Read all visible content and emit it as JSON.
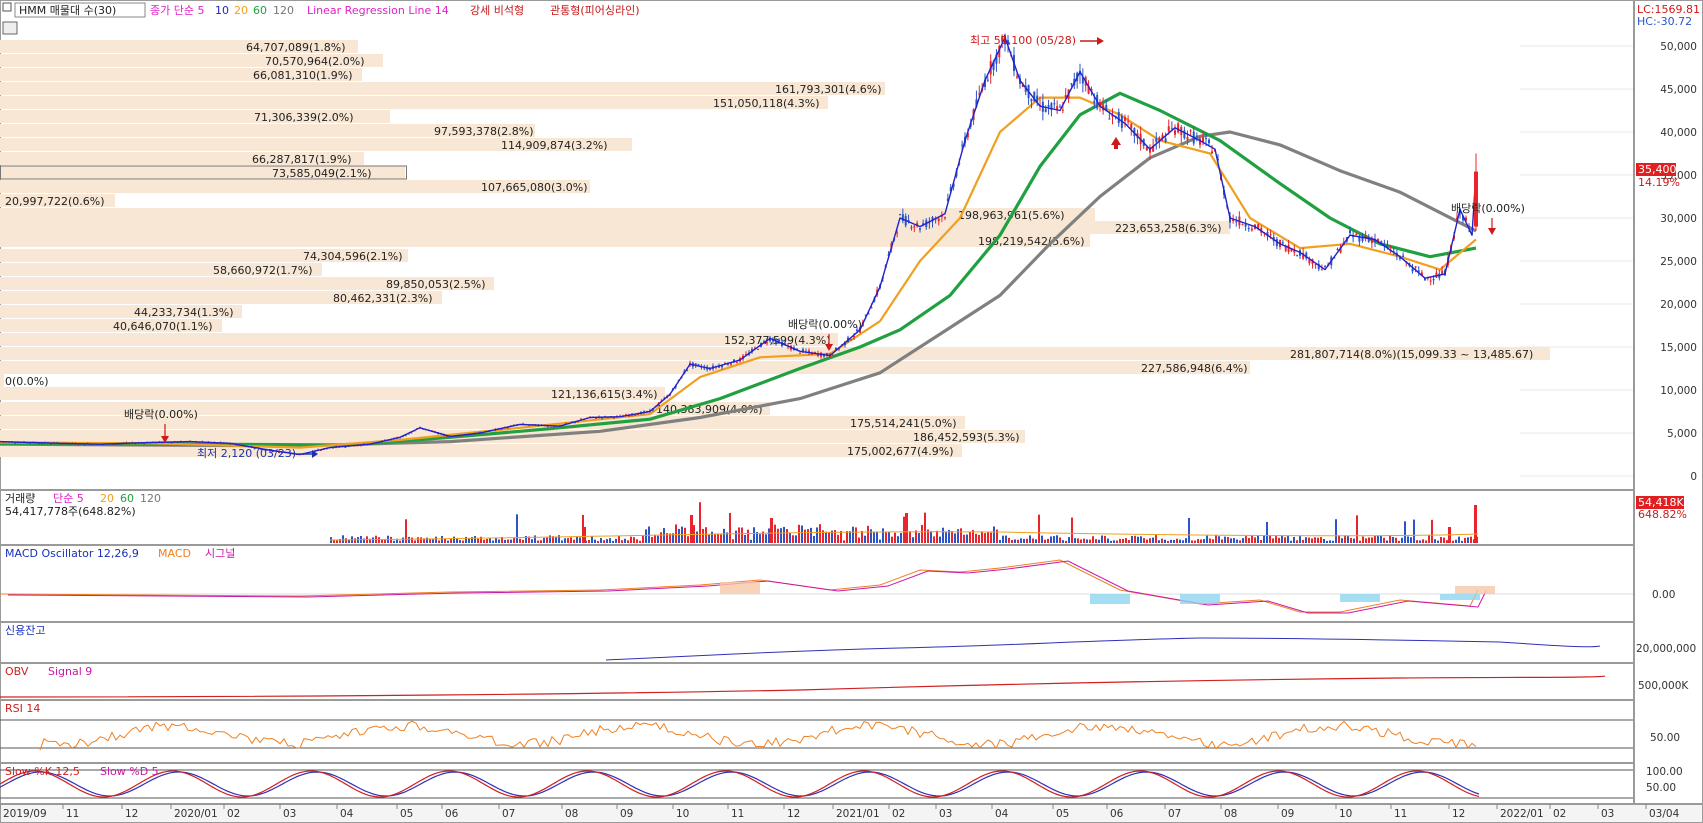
{
  "title": "HMM 매물대 수(30)",
  "legend": {
    "ma": "종가 단순 5",
    "ma_10": "10",
    "ma_20": "20",
    "ma_60": "60",
    "ma_120": "120",
    "regression": "Linear Regression Line 14",
    "pattern1": "강세 비석형",
    "pattern2": "관통형(피어싱라인)"
  },
  "corner": {
    "lc": "LC:1569.81",
    "hc": "HC:-30.72"
  },
  "price_badge": {
    "value": "35,400",
    "pct": "14.19%"
  },
  "annotations": {
    "high": "최고 51,100 (05/28)",
    "low": "최저 2,120 (03/23)",
    "dividend1": "배당락(0.00%)",
    "dividend2": "배당락(0.00%)",
    "dividend3": "배당락(0.00%)"
  },
  "chart_data": [
    {
      "type": "line",
      "name": "price",
      "x_ticks": [
        "2019/09",
        "11",
        "12",
        "2020/01",
        "02",
        "03",
        "04",
        "05",
        "06",
        "07",
        "08",
        "09",
        "10",
        "11",
        "12",
        "2021/01",
        "02",
        "03",
        "04",
        "05",
        "06",
        "07",
        "08",
        "09",
        "10",
        "11",
        "12",
        "2022/01",
        "02",
        "03",
        "03/04"
      ],
      "y_ticks": [
        "50,000",
        "45,000",
        "40,000",
        "35,000",
        "30,000",
        "25,000",
        "20,000",
        "15,000",
        "10,000",
        "5,000",
        "0"
      ],
      "ylim": [
        0,
        52000
      ],
      "close_points": [
        [
          0,
          4000
        ],
        [
          30,
          3900
        ],
        [
          60,
          3800
        ],
        [
          100,
          3700
        ],
        [
          150,
          3900
        ],
        [
          190,
          4000
        ],
        [
          230,
          3800
        ],
        [
          270,
          3000
        ],
        [
          300,
          2500
        ],
        [
          330,
          3300
        ],
        [
          370,
          3700
        ],
        [
          400,
          4500
        ],
        [
          420,
          5600
        ],
        [
          450,
          4600
        ],
        [
          480,
          5000
        ],
        [
          520,
          6000
        ],
        [
          560,
          5800
        ],
        [
          590,
          6800
        ],
        [
          620,
          6900
        ],
        [
          650,
          7500
        ],
        [
          670,
          9500
        ],
        [
          690,
          13000
        ],
        [
          710,
          12500
        ],
        [
          740,
          13500
        ],
        [
          770,
          16000
        ],
        [
          800,
          14500
        ],
        [
          830,
          14000
        ],
        [
          860,
          17000
        ],
        [
          880,
          22000
        ],
        [
          900,
          30000
        ],
        [
          920,
          29000
        ],
        [
          945,
          30500
        ],
        [
          965,
          39000
        ],
        [
          985,
          46000
        ],
        [
          1005,
          51000
        ],
        [
          1020,
          46000
        ],
        [
          1040,
          43000
        ],
        [
          1060,
          42500
        ],
        [
          1080,
          47000
        ],
        [
          1100,
          43000
        ],
        [
          1125,
          41000
        ],
        [
          1150,
          38000
        ],
        [
          1175,
          40500
        ],
        [
          1200,
          39000
        ],
        [
          1215,
          38000
        ],
        [
          1230,
          30000
        ],
        [
          1255,
          29000
        ],
        [
          1280,
          27000
        ],
        [
          1300,
          26000
        ],
        [
          1325,
          24000
        ],
        [
          1350,
          28000
        ],
        [
          1375,
          27500
        ],
        [
          1400,
          25500
        ],
        [
          1425,
          23000
        ],
        [
          1445,
          23500
        ],
        [
          1460,
          31000
        ],
        [
          1472,
          28000
        ],
        [
          1476,
          35400
        ]
      ],
      "ma20_points": [
        [
          0,
          3900
        ],
        [
          150,
          3800
        ],
        [
          300,
          3300
        ],
        [
          400,
          4200
        ],
        [
          520,
          5600
        ],
        [
          650,
          7200
        ],
        [
          700,
          11500
        ],
        [
          760,
          13800
        ],
        [
          830,
          14200
        ],
        [
          880,
          18000
        ],
        [
          920,
          25000
        ],
        [
          960,
          30000
        ],
        [
          1000,
          40000
        ],
        [
          1040,
          44000
        ],
        [
          1080,
          44000
        ],
        [
          1120,
          42000
        ],
        [
          1160,
          39000
        ],
        [
          1210,
          37500
        ],
        [
          1250,
          30000
        ],
        [
          1300,
          26500
        ],
        [
          1350,
          27000
        ],
        [
          1400,
          25500
        ],
        [
          1440,
          24000
        ],
        [
          1476,
          27500
        ]
      ],
      "ma60_points": [
        [
          0,
          3800
        ],
        [
          200,
          3700
        ],
        [
          350,
          3600
        ],
        [
          450,
          4500
        ],
        [
          550,
          5500
        ],
        [
          650,
          6600
        ],
        [
          720,
          9000
        ],
        [
          800,
          12500
        ],
        [
          860,
          15000
        ],
        [
          900,
          17000
        ],
        [
          950,
          21000
        ],
        [
          1000,
          28000
        ],
        [
          1040,
          36000
        ],
        [
          1080,
          42000
        ],
        [
          1120,
          44500
        ],
        [
          1160,
          42500
        ],
        [
          1220,
          39000
        ],
        [
          1280,
          34000
        ],
        [
          1330,
          30000
        ],
        [
          1380,
          27000
        ],
        [
          1430,
          25500
        ],
        [
          1476,
          26500
        ]
      ],
      "ma120_points": [
        [
          0,
          3700
        ],
        [
          300,
          3500
        ],
        [
          450,
          4000
        ],
        [
          600,
          5200
        ],
        [
          700,
          6800
        ],
        [
          800,
          9000
        ],
        [
          880,
          12000
        ],
        [
          940,
          16500
        ],
        [
          1000,
          21000
        ],
        [
          1050,
          27000
        ],
        [
          1100,
          32500
        ],
        [
          1150,
          37000
        ],
        [
          1200,
          39500
        ],
        [
          1230,
          40000
        ],
        [
          1280,
          38500
        ],
        [
          1340,
          35500
        ],
        [
          1400,
          33000
        ],
        [
          1476,
          28500
        ]
      ]
    },
    {
      "type": "bar",
      "name": "volume_profile",
      "labels": [
        "64,707,089(1.8%)",
        "70,570,964(2.0%)",
        "66,081,310(1.9%)",
        "161,793,301(4.6%)",
        "151,050,118(4.3%)",
        "71,306,339(2.0%)",
        "97,593,378(2.8%)",
        "114,909,874(3.2%)",
        "66,287,817(1.9%)",
        "73,585,049(2.1%)",
        "107,665,080(3.0%)",
        "20,997,722(0.6%)",
        "198,963,961(5.6%)",
        "223,653,258(6.3%)",
        "198,219,542(5.6%)",
        "74,304,596(2.1%)",
        "58,660,972(1.7%)",
        "89,850,053(2.5%)",
        "80,462,331(2.3%)",
        "44,233,734(1.3%)",
        "40,646,070(1.1%)",
        "152,377,599(4.3%)",
        "281,807,714(8.0%)(15,099.33 ~ 13,485.67)",
        "227,586,948(6.4%)",
        "0(0.0%)",
        "121,136,615(3.4%)",
        "140,383,909(4.0%)",
        "175,514,241(5.0%)",
        "186,452,593(5.3%)",
        "175,002,677(4.9%)"
      ]
    },
    {
      "type": "bar",
      "name": "volume",
      "title": "거래량",
      "legend": "단순 5",
      "ma_labels": [
        "20",
        "60",
        "120"
      ],
      "last_value": "54,417,778주(648.82%)",
      "badge": "54,418K",
      "badge_pct": "648.82%"
    },
    {
      "type": "area",
      "name": "macd",
      "title": "MACD Oscillator 12,26,9",
      "legend": [
        "MACD",
        "시그널"
      ],
      "y_label": "0.00"
    },
    {
      "type": "line",
      "name": "credit",
      "title": "신용잔고",
      "y_label": "20,000,000"
    },
    {
      "type": "line",
      "name": "obv",
      "title": "OBV",
      "legend": "Signal 9",
      "y_label": "500,000K"
    },
    {
      "type": "line",
      "name": "rsi",
      "title": "RSI 14",
      "y_label": "50.00"
    },
    {
      "type": "line",
      "name": "stochastic",
      "title": "Slow %K 12,5",
      "legend": "Slow %D 5",
      "y_labels": [
        "100.00",
        "50.00"
      ]
    }
  ],
  "colors": {
    "ma5": "#2222cc",
    "ma20": "#f0a020",
    "ma60": "#20a040",
    "ma120": "#808080",
    "up": "#e8242c",
    "down": "#2a54c8",
    "vp": "#f7e7d4",
    "magenta": "#e020c8"
  }
}
